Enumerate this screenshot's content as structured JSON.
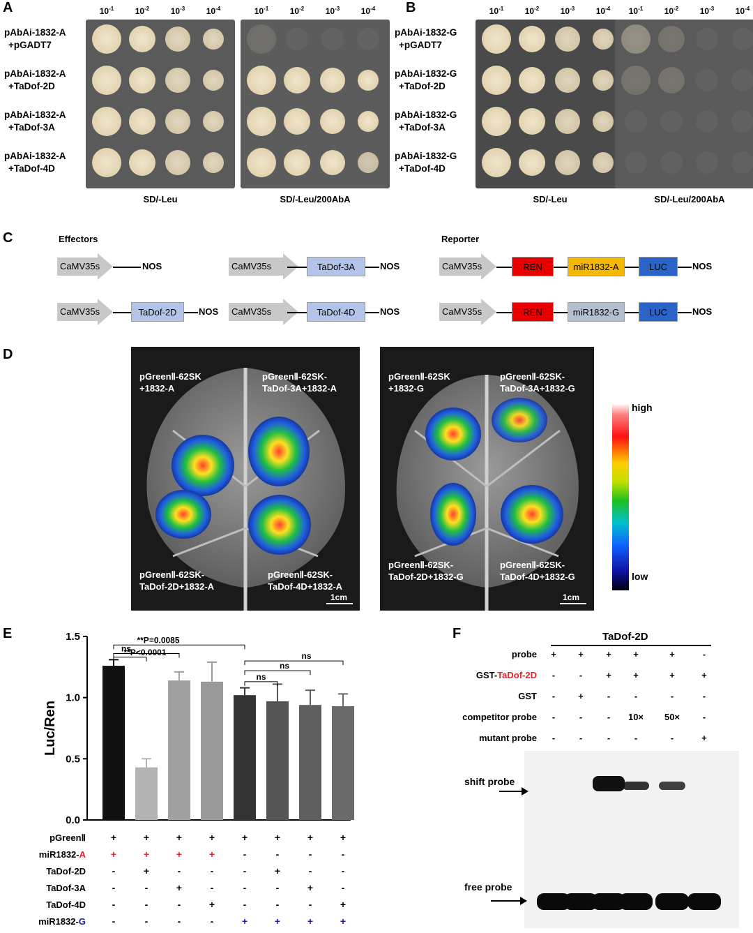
{
  "panels": {
    "A": "A",
    "B": "B",
    "C": "C",
    "D": "D",
    "E": "E",
    "F": "F"
  },
  "panelA": {
    "dilutions": [
      "10-1",
      "10-2",
      "10-3",
      "10-4"
    ],
    "strains": [
      {
        "line1": "pAbAi-1832-A",
        "line2": "+pGADT7"
      },
      {
        "line1": "pAbAi-1832-A",
        "line2": "+TaDof-2D"
      },
      {
        "line1": "pAbAi-1832-A",
        "line2": "+TaDof-3A"
      },
      {
        "line1": "pAbAi-1832-A",
        "line2": "+TaDof-4D"
      }
    ],
    "plate_left_label": "SD/-Leu",
    "plate_right_label": "SD/-Leu/200AbA"
  },
  "panelB": {
    "dilutions": [
      "10-1",
      "10-2",
      "10-3",
      "10-4"
    ],
    "strains": [
      {
        "line1": "pAbAi-1832-G",
        "line2": "+pGADT7"
      },
      {
        "line1": "pAbAi-1832-G",
        "line2": "+TaDof-2D"
      },
      {
        "line1": "pAbAi-1832-G",
        "line2": "+TaDof-3A"
      },
      {
        "line1": "pAbAi-1832-G",
        "line2": "+TaDof-4D"
      }
    ],
    "plate_left_label": "SD/-Leu",
    "plate_right_label": "SD/-Leu/200AbA"
  },
  "panelC": {
    "effectors_title": "Effectors",
    "reporter_title": "Reporter",
    "promoter": "CaMV35s",
    "terminator": "NOS",
    "genes": [
      "TaDof-3A",
      "TaDof-2D",
      "TaDof-4D"
    ],
    "ren": "REN",
    "luc": "LUC",
    "mirA": "miR1832-A",
    "mirG": "miR1832-G"
  },
  "panelD": {
    "left_labels": [
      {
        "line1": "pGreenⅡ-62SK",
        "line2": "+1832-A"
      },
      {
        "line1": "pGreenⅡ-62SK-",
        "line2": "TaDof-3A+1832-A"
      },
      {
        "line1": "pGreenⅡ-62SK-",
        "line2": "TaDof-2D+1832-A"
      },
      {
        "line1": "pGreenⅡ-62SK-",
        "line2": "TaDof-4D+1832-A"
      }
    ],
    "right_labels": [
      {
        "line1": "pGreenⅡ-62SK",
        "line2": "+1832-G"
      },
      {
        "line1": "pGreenⅡ-62SK-",
        "line2": "TaDof-3A+1832-G"
      },
      {
        "line1": "pGreenⅡ-62SK-",
        "line2": "TaDof-2D+1832-G"
      },
      {
        "line1": "pGreenⅡ-62SK-",
        "line2": "TaDof-4D+1832-G"
      }
    ],
    "scale": "1cm",
    "scale_high": "high",
    "scale_low": "low"
  },
  "chart_data": {
    "type": "bar",
    "ylabel": "Luc/Ren",
    "ylim": [
      0,
      1.5
    ],
    "yticks": [
      "0.0",
      "0.5",
      "1.0",
      "1.5"
    ],
    "values": [
      1.26,
      0.43,
      1.14,
      1.13,
      1.02,
      0.97,
      0.94,
      0.93
    ],
    "errors": [
      0.05,
      0.07,
      0.07,
      0.16,
      0.06,
      0.14,
      0.12,
      0.1
    ],
    "colors": [
      "#111111",
      "#b3b3b3",
      "#a0a0a0",
      "#9a9a9a",
      "#333333",
      "#555555",
      "#5e5e5e",
      "#6a6a6a"
    ],
    "annotations": [
      "**P=0.0085",
      "ns",
      "**P<0.0001",
      "ns",
      "ns",
      "ns"
    ],
    "row_labels": [
      {
        "text": "pGreenⅡ",
        "colored": "",
        "color": "#000000"
      },
      {
        "text": "miR1832-",
        "colored": "A",
        "color": "#e8202a"
      },
      {
        "text": "TaDof-2D",
        "colored": "",
        "color": "#000000"
      },
      {
        "text": "TaDof-3A",
        "colored": "",
        "color": "#000000"
      },
      {
        "text": "TaDof-4D",
        "colored": "",
        "color": "#000000"
      },
      {
        "text": "miR1832-",
        "colored": "G",
        "color": "#1a1a9a"
      }
    ],
    "matrix": [
      [
        "+",
        "+",
        "+",
        "+",
        "+",
        "+",
        "+",
        "+"
      ],
      [
        "+",
        "+",
        "+",
        "+",
        "-",
        "-",
        "-",
        "-"
      ],
      [
        "-",
        "+",
        "-",
        "-",
        "-",
        "+",
        "-",
        "-"
      ],
      [
        "-",
        "-",
        "+",
        "-",
        "-",
        "-",
        "+",
        "-"
      ],
      [
        "-",
        "-",
        "-",
        "+",
        "-",
        "-",
        "-",
        "+"
      ],
      [
        "-",
        "-",
        "-",
        "-",
        "+",
        "+",
        "+",
        "+"
      ]
    ]
  },
  "panelF": {
    "title": "TaDof-2D",
    "rows": [
      {
        "label": "probe",
        "colored": "",
        "marks": [
          "+",
          "+",
          "+",
          "+",
          "+",
          "-"
        ]
      },
      {
        "label": "GST-",
        "colored": "TaDof-2D",
        "marks": [
          "-",
          "-",
          "+",
          "+",
          "+",
          "+"
        ]
      },
      {
        "label": "GST",
        "colored": "",
        "marks": [
          "-",
          "+",
          "-",
          "-",
          "-",
          "-"
        ]
      },
      {
        "label": "competitor probe",
        "colored": "",
        "marks": [
          "-",
          "-",
          "-",
          "10×",
          "50×",
          "-"
        ]
      },
      {
        "label": "mutant probe",
        "colored": "",
        "marks": [
          "-",
          "-",
          "-",
          "-",
          "-",
          "+"
        ]
      }
    ],
    "shift_label": "shift probe",
    "free_label": "free probe",
    "shift_intensity": [
      0,
      0,
      1.0,
      0.7,
      0.6,
      0
    ],
    "accent": "#e8202a"
  }
}
